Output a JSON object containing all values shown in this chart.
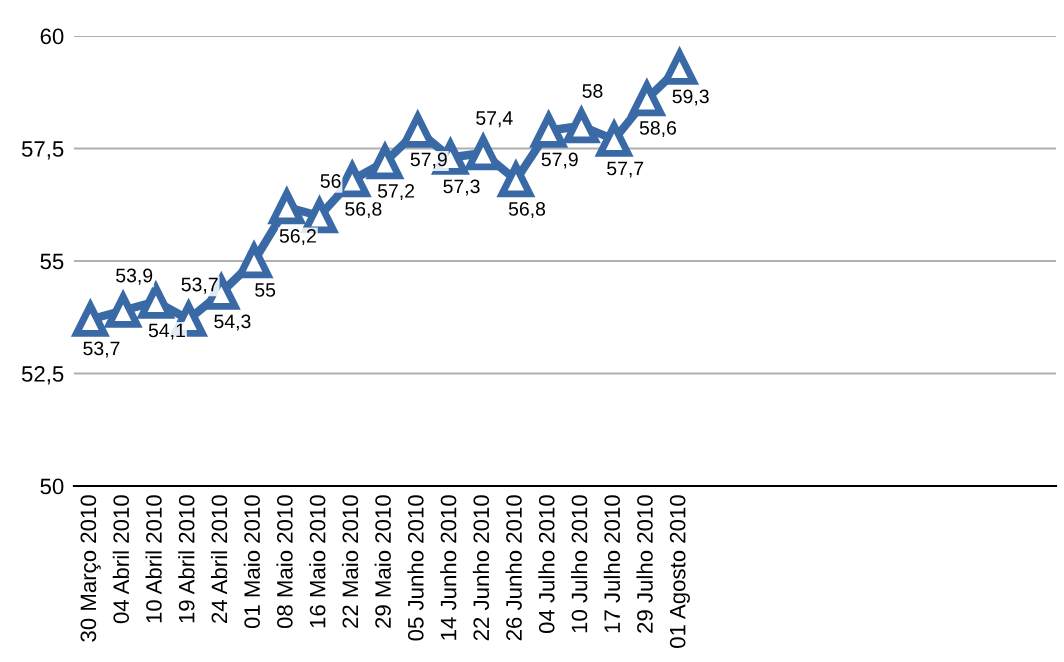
{
  "chart_data": {
    "type": "line",
    "categories": [
      "30 Março 2010",
      "04 Abril 2010",
      "10 Abril 2010",
      "19 Abril 2010",
      "24 Abril 2010",
      "01 Maio 2010",
      "08 Maio 2010",
      "16 Maio 2010",
      "22 Maio 2010",
      "29 Maio 2010",
      "05 Junho 2010",
      "14 Junho 2010",
      "22 Junho 2010",
      "26 Junho 2010",
      "04 Julho 2010",
      "10 Julho 2010",
      "17 Julho 2010",
      "29 Julho 2010",
      "01 Agosto 2010",
      null,
      null,
      null,
      null,
      null,
      null,
      null,
      null,
      null,
      null,
      null
    ],
    "series": [
      {
        "color": "#3a6aa6",
        "values": [
          53.7,
          53.9,
          54.1,
          53.7,
          54.3,
          55,
          56.2,
          56,
          56.8,
          57.2,
          57.9,
          57.3,
          57.4,
          56.8,
          57.9,
          58,
          57.7,
          58.6,
          59.3,
          null,
          null,
          null,
          null,
          null,
          null,
          null,
          null,
          null,
          null,
          null
        ],
        "value_labels": [
          "53,7",
          "53,9",
          "54,1",
          "53,7",
          "54,3",
          "55",
          "56,2",
          "56",
          "56,8",
          "57,2",
          "57,9",
          "57,3",
          "57,4",
          "56,8",
          "57,9",
          "58",
          "57,7",
          "58,6",
          "59,3",
          null,
          null,
          null,
          null,
          null,
          null,
          null,
          null,
          null,
          null,
          null
        ]
      }
    ],
    "ylim": [
      50,
      60
    ],
    "yticks": [
      50,
      {
        "value": 52.5,
        "label": "52,5"
      },
      55,
      {
        "value": 57.5,
        "label": "57,5"
      },
      60
    ],
    "grid": "y",
    "marker": "triangle",
    "line_style": "solid"
  }
}
